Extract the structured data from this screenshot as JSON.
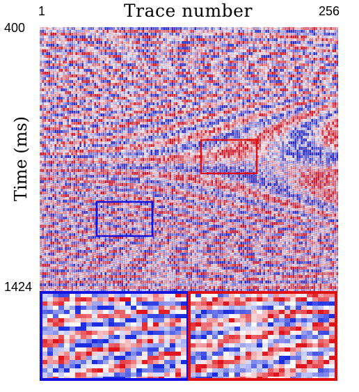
{
  "x_axis": {
    "title": "Trace number",
    "start_label": "1",
    "end_label": "256"
  },
  "y_axis": {
    "title": "Time (ms)",
    "start_label": "400",
    "end_label": "1424"
  },
  "colormap": {
    "negative": "#1c2ee0",
    "zero": "#ffffff",
    "positive": "#e0141c"
  },
  "zoom_boxes": [
    {
      "name": "blue-zoom",
      "color": "#1010e0"
    },
    {
      "name": "red-zoom",
      "color": "#e01010"
    }
  ]
}
